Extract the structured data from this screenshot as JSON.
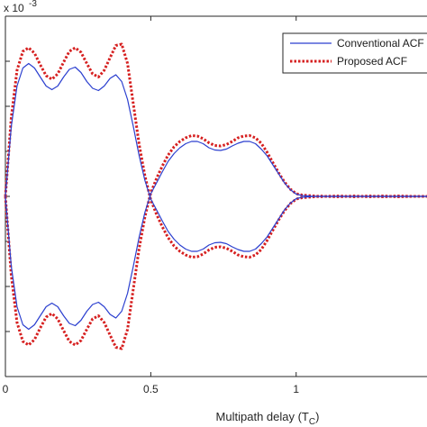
{
  "chart_data": {
    "type": "line",
    "title": "",
    "xlabel": "Multipath delay (T",
    "xlabel_subscript": "C",
    "xlabel_suffix": ")",
    "ylabel": "",
    "exponent_label": "x 10",
    "exponent_power": "-3",
    "xlim": [
      0,
      1.45
    ],
    "ylim": [
      -4,
      4
    ],
    "xticks": [
      0,
      0.5,
      1
    ],
    "xtick_labels": [
      "0",
      "0.5",
      "1"
    ],
    "yticks": [
      -3,
      -2,
      -1,
      0,
      1,
      2,
      3
    ],
    "grid": false,
    "legend_position": "top-right",
    "colors": {
      "conventional": "#2b3fcf",
      "proposed": "#d62020",
      "axis": "#262626"
    },
    "x": [
      0,
      0.02,
      0.04,
      0.06,
      0.08,
      0.1,
      0.12,
      0.14,
      0.16,
      0.18,
      0.2,
      0.22,
      0.24,
      0.26,
      0.28,
      0.3,
      0.32,
      0.34,
      0.36,
      0.38,
      0.4,
      0.42,
      0.44,
      0.46,
      0.48,
      0.5,
      0.52,
      0.54,
      0.56,
      0.58,
      0.6,
      0.62,
      0.64,
      0.66,
      0.68,
      0.7,
      0.72,
      0.74,
      0.76,
      0.78,
      0.8,
      0.82,
      0.84,
      0.86,
      0.88,
      0.9,
      0.92,
      0.94,
      0.96,
      0.98,
      1.0,
      1.02,
      1.04,
      1.06,
      1.08,
      1.1,
      1.15,
      1.2,
      1.25,
      1.3,
      1.35,
      1.4,
      1.45
    ],
    "series": [
      {
        "name": "Conventional ACF",
        "values": [
          0,
          1.55,
          2.45,
          2.85,
          2.95,
          2.85,
          2.65,
          2.45,
          2.37,
          2.45,
          2.65,
          2.82,
          2.87,
          2.75,
          2.55,
          2.4,
          2.35,
          2.45,
          2.62,
          2.7,
          2.55,
          2.15,
          1.55,
          0.9,
          0.35,
          -0.06,
          -0.3,
          -0.55,
          -0.78,
          -0.95,
          -1.08,
          -1.17,
          -1.22,
          -1.22,
          -1.17,
          -1.08,
          -1.03,
          -1.02,
          -1.05,
          -1.12,
          -1.18,
          -1.22,
          -1.22,
          -1.17,
          -1.05,
          -0.9,
          -0.7,
          -0.5,
          -0.3,
          -0.15,
          -0.05,
          -0.02,
          -0.01,
          0,
          0,
          0,
          0,
          0,
          0,
          0,
          0,
          0,
          0
        ],
        "mirror_values": [
          0,
          -1.55,
          -2.45,
          -2.85,
          -2.95,
          -2.85,
          -2.65,
          -2.45,
          -2.37,
          -2.45,
          -2.65,
          -2.82,
          -2.87,
          -2.75,
          -2.55,
          -2.4,
          -2.35,
          -2.45,
          -2.62,
          -2.7,
          -2.55,
          -2.15,
          -1.55,
          -0.9,
          -0.35,
          0.06,
          0.3,
          0.55,
          0.78,
          0.95,
          1.08,
          1.17,
          1.22,
          1.22,
          1.17,
          1.08,
          1.03,
          1.02,
          1.05,
          1.12,
          1.18,
          1.22,
          1.22,
          1.17,
          1.05,
          0.9,
          0.7,
          0.5,
          0.3,
          0.15,
          0.05,
          0.02,
          0.01,
          0,
          0,
          0,
          0,
          0,
          0,
          0,
          0,
          0,
          0
        ]
      },
      {
        "name": "Proposed ACF",
        "values": [
          0,
          1.75,
          2.8,
          3.22,
          3.3,
          3.18,
          2.92,
          2.68,
          2.6,
          2.72,
          2.98,
          3.22,
          3.3,
          3.2,
          2.95,
          2.72,
          2.65,
          2.8,
          3.08,
          3.35,
          3.38,
          2.95,
          2.05,
          1.15,
          0.45,
          -0.08,
          -0.4,
          -0.68,
          -0.92,
          -1.1,
          -1.22,
          -1.3,
          -1.35,
          -1.34,
          -1.28,
          -1.19,
          -1.13,
          -1.12,
          -1.15,
          -1.22,
          -1.3,
          -1.34,
          -1.35,
          -1.3,
          -1.18,
          -0.98,
          -0.75,
          -0.52,
          -0.32,
          -0.16,
          -0.06,
          -0.03,
          -0.02,
          -0.01,
          0.01,
          0,
          0.01,
          -0.01,
          0.01,
          -0.01,
          0.01,
          0,
          0
        ],
        "mirror_values": [
          0,
          -1.75,
          -2.8,
          -3.22,
          -3.3,
          -3.18,
          -2.92,
          -2.68,
          -2.6,
          -2.72,
          -2.98,
          -3.22,
          -3.3,
          -3.2,
          -2.95,
          -2.72,
          -2.65,
          -2.8,
          -3.08,
          -3.35,
          -3.38,
          -2.95,
          -2.05,
          -1.15,
          -0.45,
          0.08,
          0.4,
          0.68,
          0.92,
          1.1,
          1.22,
          1.3,
          1.35,
          1.34,
          1.28,
          1.19,
          1.13,
          1.12,
          1.15,
          1.22,
          1.3,
          1.34,
          1.35,
          1.3,
          1.18,
          0.98,
          0.75,
          0.52,
          0.32,
          0.16,
          0.06,
          0.03,
          0.02,
          0.01,
          -0.01,
          0,
          -0.01,
          0.01,
          -0.01,
          0.01,
          -0.01,
          0,
          0
        ]
      }
    ]
  }
}
